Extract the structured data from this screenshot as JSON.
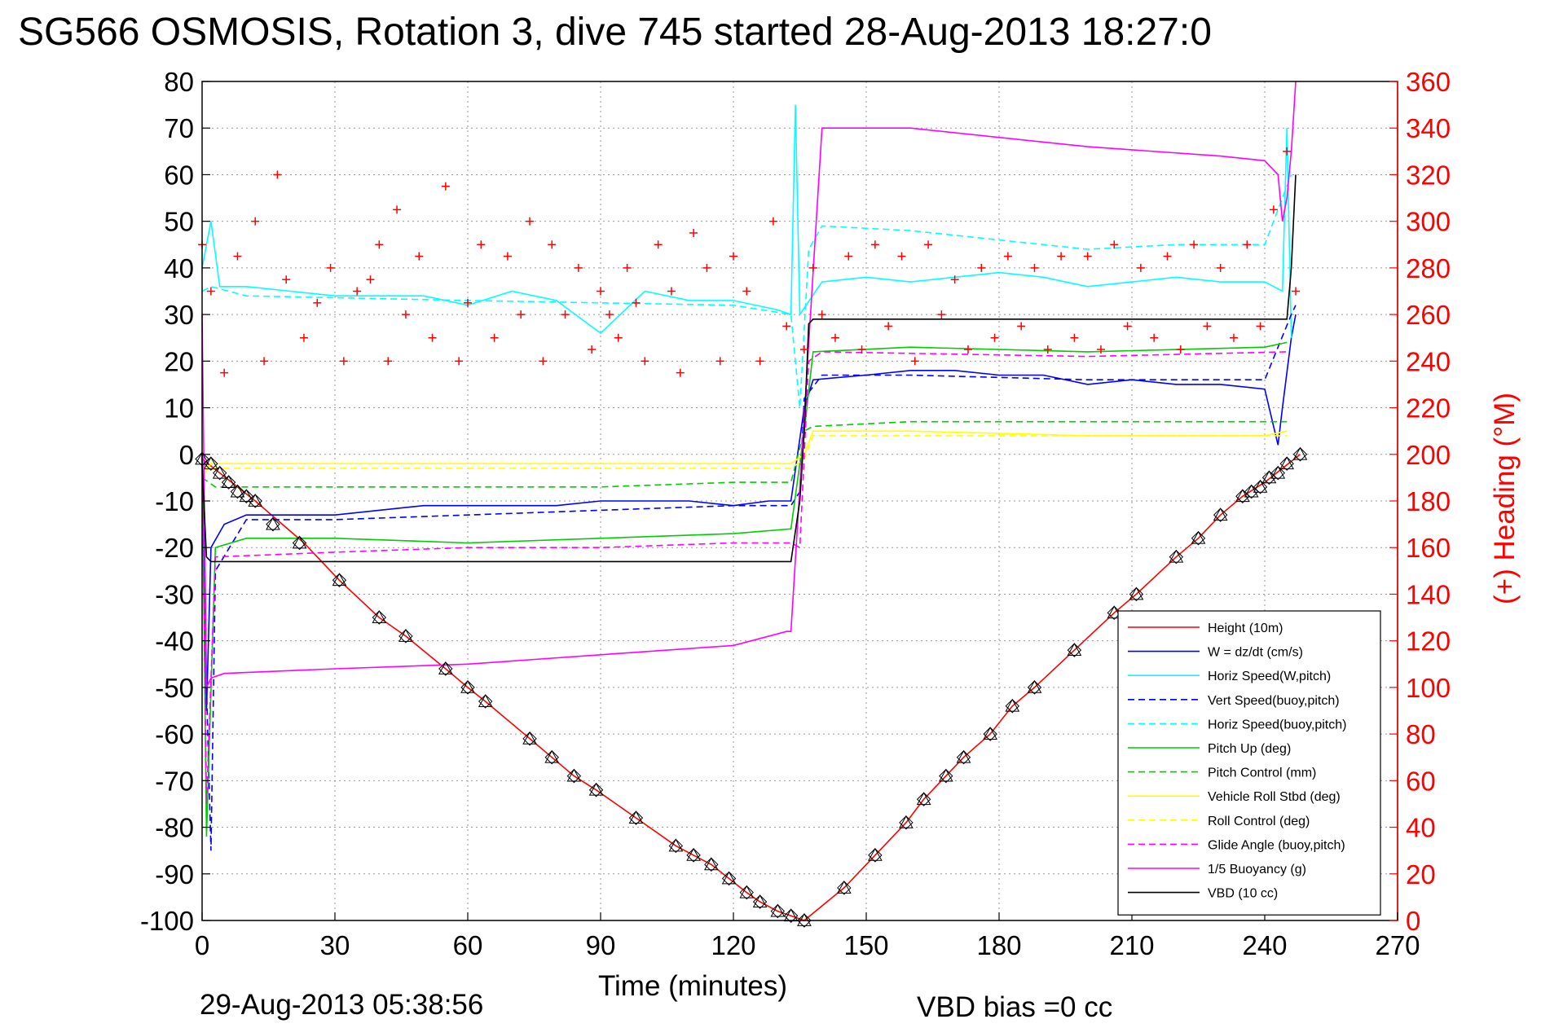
{
  "chart_data": {
    "type": "line",
    "title": "SG566 OSMOSIS, Rotation 3, dive 745 started 28-Aug-2013 18:27:0",
    "xlabel": "Time (minutes)",
    "ylabel_right": "(+) Heading (°M)",
    "xlim": [
      0,
      270
    ],
    "ylim_left": [
      -100,
      80
    ],
    "ylim_right": [
      0,
      360
    ],
    "x_ticks": [
      "0",
      "30",
      "60",
      "90",
      "120",
      "150",
      "180",
      "210",
      "240",
      "270"
    ],
    "y_left_ticks": [
      "80",
      "70",
      "60",
      "50",
      "40",
      "30",
      "20",
      "10",
      "0",
      "-10",
      "-20",
      "-30",
      "-40",
      "-50",
      "-60",
      "-70",
      "-80",
      "-90",
      "-100"
    ],
    "y_right_ticks": [
      "360",
      "340",
      "320",
      "300",
      "280",
      "260",
      "240",
      "220",
      "200",
      "180",
      "160",
      "140",
      "120",
      "100",
      "80",
      "60",
      "40",
      "20",
      "0"
    ],
    "grid": true,
    "legend_position": "bottom-right",
    "series": [
      {
        "name": "Height (10m)",
        "color": "#ff0000",
        "style": "solid",
        "x": [
          0,
          12,
          23,
          31,
          40,
          46,
          55,
          60,
          64,
          74,
          79,
          84,
          89,
          98,
          107,
          111,
          115,
          119,
          123,
          126,
          130,
          133,
          136,
          145,
          152,
          159,
          163,
          168,
          172,
          178,
          183,
          188,
          197,
          206,
          211,
          220,
          225,
          230,
          235,
          240,
          244,
          248
        ],
        "y": [
          -1,
          -10,
          -19,
          -27,
          -35,
          -39,
          -46,
          -50,
          -53,
          -61,
          -65,
          -69,
          -72,
          -78,
          -84,
          -86,
          -88,
          -91,
          -94,
          -96,
          -98,
          -99,
          -100,
          -93,
          -86,
          -79,
          -74,
          -69,
          -65,
          -60,
          -54,
          -50,
          -42,
          -34,
          -30,
          -22,
          -18,
          -13,
          -9,
          -6,
          -3,
          0
        ]
      },
      {
        "name": "W = dz/dt (cm/s)",
        "color": "#0000ff",
        "style": "solid",
        "x": [
          0,
          1,
          2,
          5,
          10,
          20,
          30,
          40,
          50,
          60,
          70,
          80,
          90,
          100,
          110,
          120,
          128,
          133,
          136,
          138,
          150,
          160,
          170,
          180,
          190,
          200,
          210,
          220,
          230,
          240,
          243,
          244,
          246,
          247
        ],
        "y": [
          0,
          -55,
          -20,
          -15,
          -13,
          -13,
          -13,
          -12,
          -11,
          -11,
          -11,
          -11,
          -10,
          -10,
          -10,
          -11,
          -10,
          -10,
          10,
          16,
          17,
          18,
          18,
          17,
          17,
          15,
          16,
          15,
          15,
          14,
          2,
          10,
          25,
          30
        ]
      },
      {
        "name": "Horiz Speed(W,pitch)",
        "color": "#00ffff",
        "style": "solid",
        "x": [
          0,
          2,
          4,
          10,
          20,
          30,
          40,
          50,
          60,
          70,
          80,
          90,
          100,
          110,
          120,
          130,
          133,
          134,
          135,
          140,
          150,
          160,
          170,
          180,
          190,
          200,
          210,
          220,
          230,
          240,
          244,
          245,
          246
        ],
        "y": [
          40,
          50,
          36,
          36,
          35,
          34,
          34,
          34,
          32,
          35,
          33,
          26,
          35,
          33,
          33,
          31,
          30,
          75,
          30,
          37,
          38,
          37,
          38,
          39,
          38,
          36,
          37,
          38,
          37,
          37,
          35,
          70,
          25
        ]
      },
      {
        "name": "Vert Speed(buoy,pitch)",
        "color": "#0000ff",
        "style": "dashed",
        "x": [
          0,
          1,
          2,
          3,
          10,
          30,
          60,
          90,
          120,
          133,
          135,
          136,
          140,
          160,
          200,
          240,
          246,
          247
        ],
        "y": [
          0,
          -50,
          -85,
          -25,
          -14,
          -14,
          -13,
          -12,
          -11,
          -11,
          -8,
          12,
          17,
          17,
          16,
          16,
          30,
          32
        ]
      },
      {
        "name": "Horiz Speed(buoy,pitch)",
        "color": "#00ffff",
        "style": "dashed",
        "x": [
          0,
          2,
          10,
          60,
          120,
          133,
          135,
          137,
          140,
          160,
          180,
          200,
          220,
          240,
          244,
          246
        ],
        "y": [
          35,
          36,
          34,
          33,
          32,
          30,
          10,
          44,
          49,
          48,
          46,
          44,
          45,
          45,
          55,
          60
        ]
      },
      {
        "name": "Pitch Up (deg)",
        "color": "#00cc00",
        "style": "solid",
        "x": [
          0,
          1,
          3,
          10,
          30,
          60,
          90,
          120,
          133,
          136,
          138,
          160,
          200,
          240,
          245
        ],
        "y": [
          0,
          -82,
          -20,
          -18,
          -18,
          -19,
          -18,
          -17,
          -16,
          5,
          22,
          23,
          22,
          23,
          24
        ]
      },
      {
        "name": "Pitch Control (mm)",
        "color": "#00cc00",
        "style": "dashed",
        "x": [
          0,
          3,
          30,
          60,
          90,
          120,
          133,
          136,
          138,
          160,
          200,
          245
        ],
        "y": [
          -5,
          -7,
          -7,
          -7,
          -7,
          -6,
          -6,
          5,
          6,
          7,
          7,
          7
        ]
      },
      {
        "name": "Vehicle Roll Stbd (deg)",
        "color": "#ffff00",
        "style": "solid",
        "x": [
          0,
          2,
          10,
          30,
          60,
          90,
          120,
          133,
          136,
          138,
          160,
          200,
          240,
          245
        ],
        "y": [
          -5,
          -2,
          -2,
          -2,
          -2,
          -2,
          -2,
          -2,
          0,
          5,
          5,
          4,
          4,
          5
        ]
      },
      {
        "name": "Roll Control (deg)",
        "color": "#ffff00",
        "style": "dashed",
        "x": [
          0,
          2,
          30,
          60,
          90,
          120,
          133,
          136,
          138,
          160,
          200,
          245
        ],
        "y": [
          -3,
          -3,
          -3,
          -3,
          -3,
          -3,
          -3,
          -1,
          4,
          4,
          4,
          4
        ]
      },
      {
        "name": "Glide Angle (buoy,pitch)",
        "color": "#ff00ff",
        "style": "dashed",
        "x": [
          0,
          1,
          3,
          30,
          60,
          90,
          120,
          133,
          135,
          137,
          140,
          200,
          245
        ],
        "y": [
          0,
          -75,
          -22,
          -21,
          -20,
          -20,
          -19,
          -19,
          -20,
          20,
          22,
          21,
          22
        ]
      },
      {
        "name": "1/5 Buoyancy (g)",
        "color": "#ff00ff",
        "style": "solid",
        "x": [
          0,
          1,
          2,
          5,
          30,
          60,
          90,
          120,
          132,
          133,
          140,
          160,
          200,
          230,
          240,
          243,
          244,
          245,
          246,
          247
        ],
        "y": [
          30,
          -50,
          -48,
          -47,
          -46,
          -45,
          -43,
          -41,
          -38,
          -38,
          70,
          70,
          66,
          64,
          63,
          60,
          50,
          55,
          65,
          80
        ]
      },
      {
        "name": "VBD (10 cc)",
        "color": "#000000",
        "style": "solid",
        "x": [
          0,
          1,
          2,
          30,
          60,
          90,
          120,
          132,
          133,
          135,
          136,
          137,
          138,
          140,
          160,
          200,
          245,
          246,
          247
        ],
        "y": [
          -2,
          -22,
          -23,
          -23,
          -23,
          -23,
          -23,
          -23,
          -23,
          -10,
          5,
          28,
          29,
          29,
          29,
          29,
          29,
          40,
          60
        ]
      }
    ],
    "heading_markers": {
      "axis": "right",
      "color": "#ff0000",
      "marker": "+",
      "x": [
        0,
        2,
        5,
        8,
        12,
        14,
        17,
        19,
        23,
        26,
        29,
        32,
        35,
        38,
        40,
        42,
        44,
        46,
        49,
        52,
        55,
        58,
        60,
        63,
        66,
        69,
        72,
        74,
        77,
        79,
        82,
        85,
        88,
        90,
        92,
        94,
        96,
        98,
        100,
        103,
        106,
        108,
        111,
        114,
        117,
        120,
        123,
        126,
        129,
        132,
        136,
        138,
        140,
        143,
        146,
        149,
        152,
        155,
        158,
        161,
        164,
        167,
        170,
        173,
        176,
        179,
        182,
        185,
        188,
        191,
        194,
        197,
        200,
        203,
        206,
        209,
        212,
        215,
        218,
        221,
        224,
        227,
        230,
        233,
        236,
        239,
        242,
        245,
        247
      ],
      "y": [
        290,
        270,
        235,
        285,
        300,
        240,
        320,
        275,
        250,
        265,
        280,
        240,
        270,
        275,
        290,
        240,
        305,
        260,
        285,
        250,
        315,
        240,
        265,
        290,
        250,
        285,
        260,
        300,
        240,
        290,
        260,
        280,
        245,
        270,
        260,
        250,
        280,
        265,
        240,
        290,
        270,
        235,
        295,
        280,
        240,
        285,
        270,
        240,
        300,
        255,
        245,
        280,
        260,
        250,
        285,
        245,
        290,
        255,
        285,
        240,
        290,
        260,
        275,
        245,
        280,
        250,
        285,
        255,
        280,
        245,
        285,
        250,
        285,
        245,
        290,
        255,
        280,
        250,
        285,
        245,
        290,
        255,
        280,
        250,
        290,
        255,
        305,
        330,
        270
      ]
    },
    "depth_markers": {
      "color": "#000000",
      "marker": "triangle-diamond",
      "x": [
        0,
        2,
        4,
        6,
        8,
        10,
        12,
        16,
        22,
        31,
        40,
        46,
        55,
        60,
        64,
        74,
        79,
        84,
        89,
        98,
        107,
        111,
        115,
        119,
        123,
        126,
        130,
        133,
        136,
        145,
        152,
        159,
        163,
        168,
        172,
        178,
        183,
        188,
        197,
        206,
        211,
        220,
        225,
        230,
        235,
        237,
        239,
        241,
        243,
        245,
        248
      ],
      "y": [
        -1,
        -2,
        -4,
        -6,
        -8,
        -9,
        -10,
        -15,
        -19,
        -27,
        -35,
        -39,
        -46,
        -50,
        -53,
        -61,
        -65,
        -69,
        -72,
        -78,
        -84,
        -86,
        -88,
        -91,
        -94,
        -96,
        -98,
        -99,
        -100,
        -93,
        -86,
        -79,
        -74,
        -69,
        -65,
        -60,
        -54,
        -50,
        -42,
        -34,
        -30,
        -22,
        -18,
        -13,
        -9,
        -8,
        -7,
        -5,
        -4,
        -2,
        0
      ]
    }
  },
  "footer": {
    "timestamp": "29-Aug-2013 05:38:56",
    "vbd_bias": "VBD bias =0 cc"
  }
}
